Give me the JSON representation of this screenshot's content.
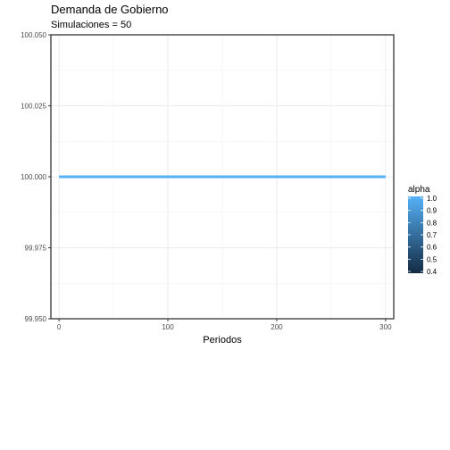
{
  "chart_data": {
    "type": "line",
    "title": "Demanda de Gobierno",
    "subtitle": "Simulaciones = 50",
    "xlabel": "Periodos",
    "ylabel": "",
    "xlim": [
      -7.5,
      307.5
    ],
    "ylim": [
      99.95,
      100.05
    ],
    "x_ticks": [
      0,
      100,
      200,
      300
    ],
    "x_tick_labels": [
      "0",
      "100",
      "200",
      "300"
    ],
    "y_ticks": [
      99.95,
      99.975,
      100.0,
      100.025,
      100.05
    ],
    "y_tick_labels": [
      "99.950",
      "99.975",
      "100.000",
      "100.025",
      "100.050"
    ],
    "grid": true,
    "series": [
      {
        "x_start": 0,
        "x_end": 300,
        "value": 100.0,
        "color": "#56B1F7"
      }
    ],
    "legend": {
      "title": "alpha",
      "placement": "right",
      "labels": [
        "1.0",
        "0.9",
        "0.8",
        "0.7",
        "0.6",
        "0.5",
        "0.4"
      ],
      "gradient": [
        "#56B1F7",
        "#132B43"
      ]
    }
  }
}
